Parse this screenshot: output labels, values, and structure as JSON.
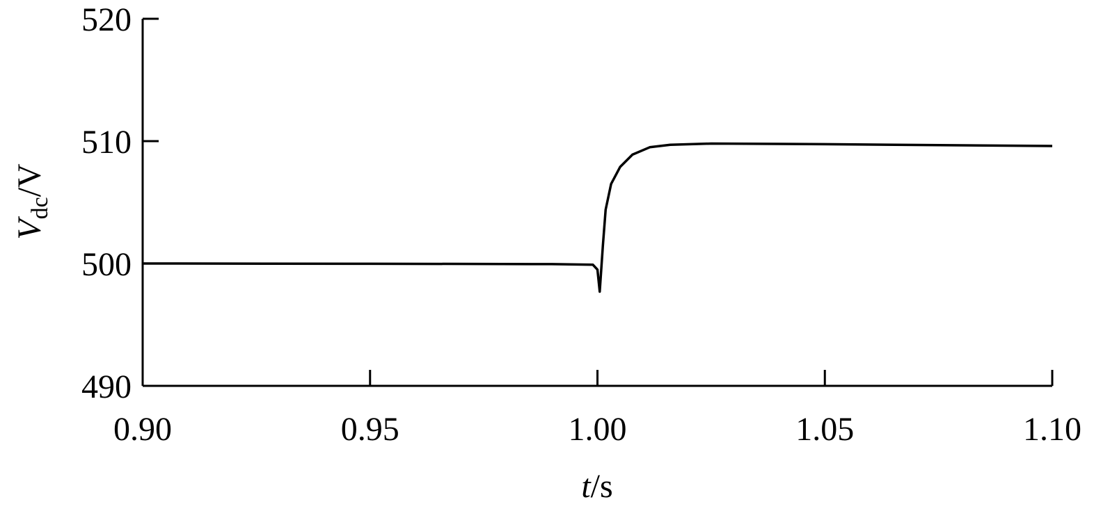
{
  "chart_data": {
    "type": "line",
    "xlabel_parts": [
      "t",
      "/s"
    ],
    "ylabel_parts": [
      "V",
      "dc",
      "/V"
    ],
    "x": [
      0.9,
      0.95,
      0.99,
      0.999,
      1.0,
      1.0005,
      1.0012,
      1.0018,
      1.003,
      1.005,
      1.0077,
      1.0115,
      1.016,
      1.025,
      1.05,
      1.1
    ],
    "series": [
      {
        "color": "#000000",
        "values": [
          500.0,
          499.98,
          499.95,
          499.9,
          499.5,
          497.7,
          501.5,
          504.4,
          506.5,
          507.9,
          508.9,
          509.5,
          509.7,
          509.8,
          509.75,
          509.6
        ]
      }
    ],
    "xlim": [
      0.9,
      1.1
    ],
    "xticks": [
      {
        "value": 0.9,
        "label": "0.90"
      },
      {
        "value": 0.95,
        "label": "0.95"
      },
      {
        "value": 1.0,
        "label": "1.00"
      },
      {
        "value": 1.05,
        "label": "1.05"
      },
      {
        "value": 1.1,
        "label": "1.10"
      }
    ],
    "ylim": [
      490,
      520
    ],
    "yticks": [
      490,
      500,
      510,
      520
    ],
    "grid": false
  }
}
